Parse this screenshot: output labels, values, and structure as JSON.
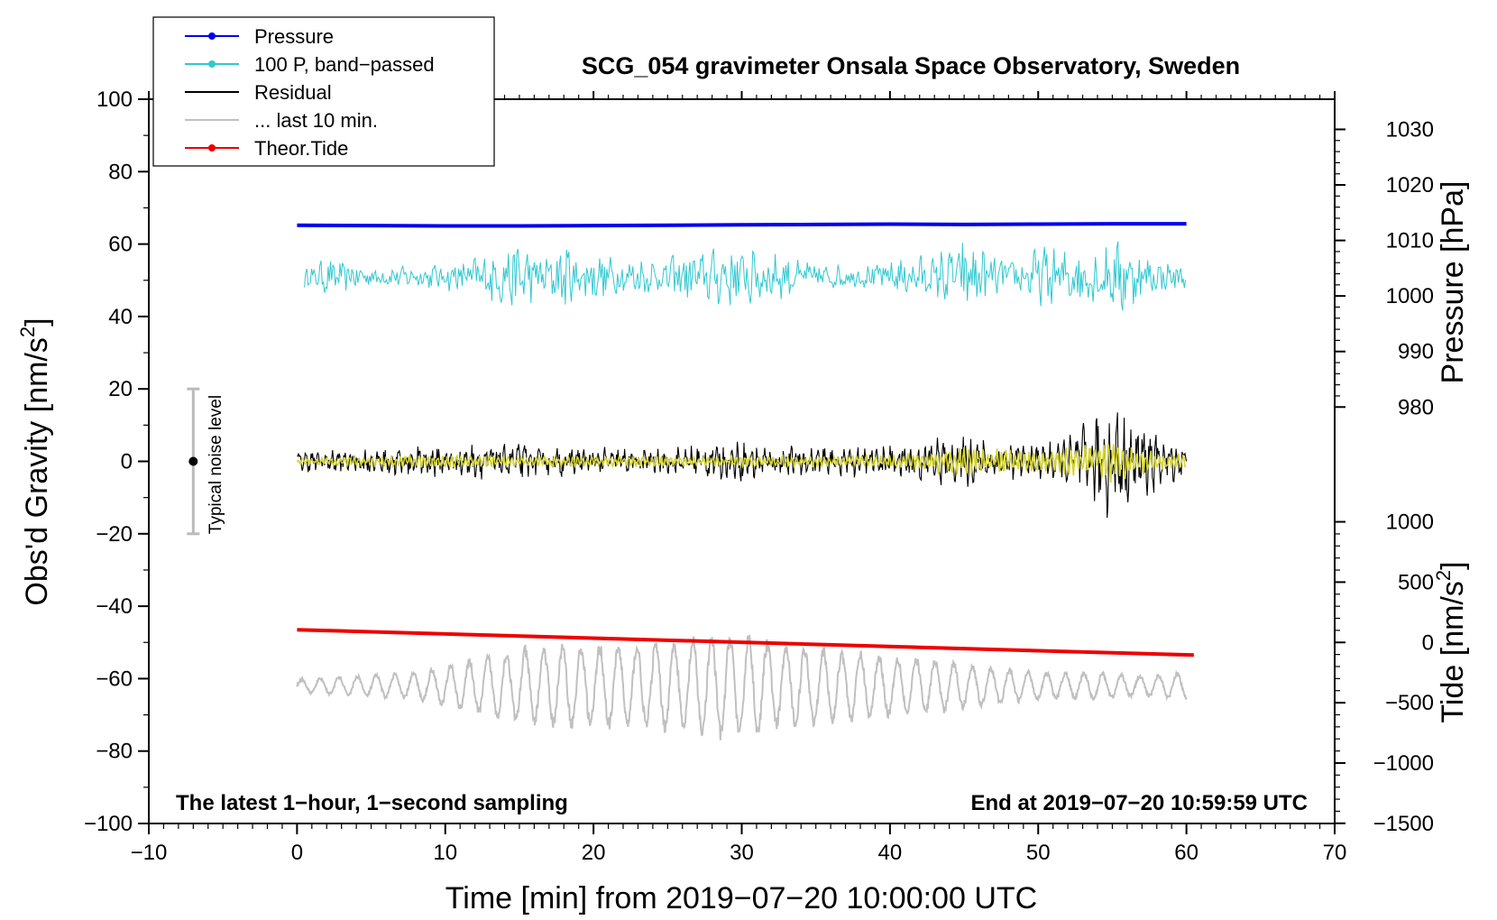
{
  "chart_data": {
    "type": "line",
    "title": "SCG_054 gravimeter Onsala Space Observatory, Sweden",
    "xlabel": "Time [min] from 2019−07−20 10:00:00 UTC",
    "ylabel_main": "Obs'd Gravity [nm/s",
    "ylabel_main_sup": "2",
    "ylabel_main_end": "]",
    "ylabel_pressure": "Pressure [hPa]",
    "ylabel_tide": "Tide [nm/s",
    "ylabel_tide_sup": "2",
    "ylabel_tide_end": "]",
    "xlim": [
      -10,
      70
    ],
    "ylim": [
      -100,
      100
    ],
    "x_ticks": [
      -10,
      0,
      10,
      20,
      30,
      40,
      50,
      60,
      70
    ],
    "x_tick_labels": [
      "−10",
      "0",
      "10",
      "20",
      "30",
      "40",
      "50",
      "60",
      "70"
    ],
    "y_ticks": [
      -100,
      -80,
      -60,
      -40,
      -20,
      0,
      20,
      40,
      60,
      80,
      100
    ],
    "y_tick_labels": [
      "−100",
      "−80",
      "−60",
      "−40",
      "−20",
      "0",
      "20",
      "40",
      "60",
      "80",
      "100"
    ],
    "pressure_axis": {
      "ticks": [
        980,
        990,
        1000,
        1010,
        1020,
        1030
      ],
      "tick_labels": [
        "980",
        "990",
        "1000",
        "1010",
        "1020",
        "1030"
      ],
      "map_to_gravity": {
        "value_a": 1010,
        "gravity_a": 61.0,
        "value_b": 980,
        "gravity_b": 15.0
      }
    },
    "tide_axis": {
      "ticks": [
        -1500,
        -1000,
        -500,
        0,
        500,
        1000
      ],
      "tick_labels": [
        "−1500",
        "−1000",
        "−500",
        "0",
        "500",
        "1000"
      ],
      "map_to_gravity": {
        "value_a": 0,
        "gravity_a": -50.0,
        "value_b": 1000,
        "gravity_b": -16.7
      }
    },
    "annotation_left": "The latest 1−hour, 1−second sampling",
    "annotation_right": "End at 2019−07−20 10:59:59 UTC",
    "noise_label": "Typical noise level",
    "noise_bar": {
      "x": -7,
      "center": 0,
      "half_range": 20
    },
    "series": [
      {
        "name": "Pressure",
        "color": "#0000ee",
        "marker": true,
        "x_start": 0,
        "x_end": 60,
        "values_gravity": [
          65.2,
          65.1,
          65.0,
          65.0,
          65.1,
          65.2,
          65.3,
          65.4,
          65.5,
          65.4,
          65.5,
          65.6,
          65.6
        ]
      },
      {
        "name": "100 P, band−passed",
        "color": "#30c8d0",
        "marker": true,
        "x_start": 0.5,
        "x_end": 60,
        "baseline": 51,
        "envelope": [
          [
            0,
            3
          ],
          [
            2,
            5
          ],
          [
            5,
            3
          ],
          [
            8,
            3
          ],
          [
            10,
            4
          ],
          [
            12,
            6
          ],
          [
            14,
            9
          ],
          [
            15,
            10
          ],
          [
            17,
            6
          ],
          [
            18,
            10
          ],
          [
            20,
            7
          ],
          [
            22,
            5
          ],
          [
            25,
            6
          ],
          [
            28,
            8
          ],
          [
            30,
            10
          ],
          [
            32,
            7
          ],
          [
            35,
            4
          ],
          [
            38,
            3
          ],
          [
            40,
            5
          ],
          [
            43,
            7
          ],
          [
            45,
            11
          ],
          [
            47,
            6
          ],
          [
            49,
            5
          ],
          [
            50,
            9
          ],
          [
            52,
            8
          ],
          [
            55,
            9
          ],
          [
            56,
            13
          ],
          [
            57,
            6
          ],
          [
            59,
            4
          ],
          [
            60,
            3
          ]
        ]
      },
      {
        "name": "Residual",
        "color": "#000000",
        "marker": false,
        "x_start": 0,
        "x_end": 60,
        "baseline": 0,
        "envelope": [
          [
            0,
            3
          ],
          [
            5,
            4
          ],
          [
            10,
            5
          ],
          [
            15,
            5
          ],
          [
            20,
            4
          ],
          [
            25,
            4
          ],
          [
            30,
            6
          ],
          [
            35,
            4
          ],
          [
            40,
            5
          ],
          [
            43,
            7
          ],
          [
            45,
            8
          ],
          [
            48,
            6
          ],
          [
            50,
            5
          ],
          [
            52,
            7
          ],
          [
            53,
            11
          ],
          [
            55,
            17
          ],
          [
            57,
            11
          ],
          [
            59,
            6
          ],
          [
            60,
            5
          ]
        ]
      },
      {
        "name": "... last 10 min.",
        "color": "#c0c0c0",
        "marker": false,
        "x_start": 0,
        "x_end": 60,
        "baseline": -62,
        "envelope": [
          [
            0,
            2
          ],
          [
            4,
            3
          ],
          [
            8,
            4
          ],
          [
            10,
            6
          ],
          [
            12,
            8
          ],
          [
            15,
            11
          ],
          [
            18,
            12
          ],
          [
            20,
            12
          ],
          [
            25,
            13
          ],
          [
            28,
            15
          ],
          [
            30,
            16
          ],
          [
            33,
            12
          ],
          [
            36,
            11
          ],
          [
            40,
            9
          ],
          [
            43,
            8
          ],
          [
            46,
            6
          ],
          [
            50,
            4
          ],
          [
            54,
            4
          ],
          [
            57,
            3
          ],
          [
            60,
            4
          ]
        ]
      },
      {
        "name": "Theor.Tide",
        "color": "#ee0000",
        "marker": true,
        "x_start": 0,
        "x_end": 60.5,
        "start_gravity": -46.5,
        "end_gravity": -53.5
      },
      {
        "name": "last 10 min overlay",
        "color": "#d4d430",
        "marker": false,
        "x_start": 0,
        "x_end": 60,
        "baseline": 0,
        "envelope": [
          [
            0,
            1
          ],
          [
            10,
            2
          ],
          [
            20,
            1.5
          ],
          [
            30,
            1.5
          ],
          [
            40,
            2
          ],
          [
            44,
            4
          ],
          [
            46,
            4
          ],
          [
            50,
            3
          ],
          [
            52,
            4
          ],
          [
            55,
            6
          ],
          [
            58,
            3
          ],
          [
            60,
            2
          ]
        ]
      }
    ]
  },
  "legend": {
    "items": [
      {
        "label": "Pressure",
        "color": "#0000ee",
        "marker": true
      },
      {
        "label": "100 P, band−passed",
        "color": "#30c8d0",
        "marker": true
      },
      {
        "label": "Residual",
        "color": "#000000",
        "marker": false
      },
      {
        "label": "... last 10 min.",
        "color": "#c0c0c0",
        "marker": false
      },
      {
        "label": "Theor.Tide",
        "color": "#ee0000",
        "marker": true
      }
    ]
  }
}
